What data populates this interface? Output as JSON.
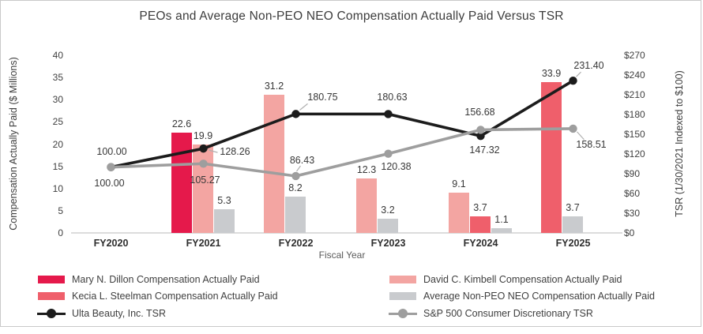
{
  "chart_data": {
    "type": "combo-bar-line",
    "title": "PEOs and Average Non-PEO NEO Compensation Actually Paid Versus TSR",
    "categories": [
      "FY2020",
      "FY2021",
      "FY2022",
      "FY2023",
      "FY2024",
      "FY2025"
    ],
    "xlabel": "Fiscal Year",
    "grid": false,
    "left_axis": {
      "label": "Compensation Actually Paid ($ Millions)",
      "ticks": [
        0,
        5,
        10,
        15,
        20,
        25,
        30,
        35,
        40
      ],
      "range": [
        0,
        40
      ]
    },
    "right_axis": {
      "label": "TSR (1/30/2021 Indexed to $100)",
      "tick_labels": [
        "$0",
        "$30",
        "$60",
        "$90",
        "$120",
        "$150",
        "$180",
        "$210",
        "$240",
        "$270"
      ],
      "tick_values": [
        0,
        30,
        60,
        90,
        120,
        150,
        180,
        210,
        240,
        270
      ],
      "range": [
        0,
        270
      ]
    },
    "bar_series": [
      {
        "key": "dillon",
        "name": "Mary N. Dillon Compensation Actually Paid",
        "color": "#E5194B",
        "values": [
          null,
          22.6,
          null,
          null,
          null,
          null
        ]
      },
      {
        "key": "kimbell",
        "name": "David C. Kimbell Compensation Actually Paid",
        "color": "#F3A5A2",
        "values": [
          null,
          19.9,
          31.2,
          12.3,
          9.1,
          null
        ]
      },
      {
        "key": "steelman",
        "name": "Kecia L. Steelman Compensation Actually Paid",
        "color": "#EF5F6B",
        "values": [
          null,
          null,
          null,
          null,
          3.7,
          33.9
        ]
      },
      {
        "key": "avg-neo",
        "name": "Average Non-PEO NEO Compensation Actually Paid",
        "color": "#C9CBCE",
        "values": [
          null,
          5.3,
          8.2,
          3.2,
          1.1,
          3.7
        ]
      }
    ],
    "line_series": [
      {
        "key": "ulta",
        "name": "Ulta Beauty, Inc. TSR",
        "color": "#1C1C1C",
        "values": [
          100.0,
          128.26,
          180.75,
          180.63,
          147.32,
          231.4
        ]
      },
      {
        "key": "sp500",
        "name": "S&P 500 Consumer Discretionary TSR",
        "color": "#9E9E9E",
        "values": [
          100.0,
          105.27,
          86.43,
          120.38,
          156.68,
          158.51
        ]
      }
    ],
    "legend_position": "bottom-two-columns"
  }
}
